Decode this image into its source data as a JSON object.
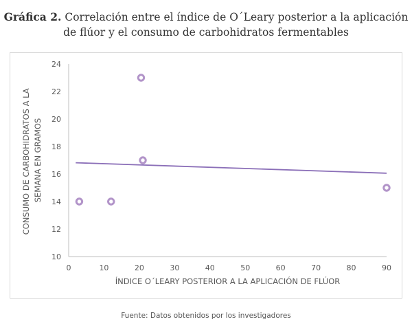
{
  "caption": {
    "label": "Gráfica 2.",
    "line1": "Correlación entre el índice de O´Leary posterior a la aplicación",
    "line2": "de flúor y el consumo de carbohidratos fermentables"
  },
  "source": "Fuente: Datos obtenidos por los investigadores",
  "colors": {
    "marker": "#b294c9",
    "trendline": "#8b6fb8",
    "axis": "#bfbfbf",
    "text": "#595959"
  },
  "chart_data": {
    "type": "scatter",
    "title": "Correlación entre el índice de O´Leary posterior a la aplicación de flúor y el consumo de carbohidratos fermentables",
    "xlabel": "ÍNDICE O´LEARY POSTERIOR A LA APLICACIÓN DE FLÚOR",
    "ylabel_lines": [
      "CONSUMO DE CARBOHIDRATOS A LA",
      "SEMANA EN GRAMOS"
    ],
    "xlim": [
      0,
      90
    ],
    "ylim": [
      10,
      24
    ],
    "x_ticks": [
      "0",
      "10",
      "20",
      "30",
      "40",
      "50",
      "60",
      "70",
      "80",
      "90"
    ],
    "x_tick_values": [
      0,
      10,
      20,
      30,
      40,
      50,
      60,
      70,
      80,
      90
    ],
    "y_ticks": [
      "10",
      "12",
      "14",
      "16",
      "18",
      "20",
      "22",
      "24"
    ],
    "y_tick_values": [
      10,
      12,
      14,
      16,
      18,
      20,
      22,
      24
    ],
    "grid": false,
    "points": [
      {
        "x": 3,
        "y": 14
      },
      {
        "x": 12,
        "y": 14
      },
      {
        "x": 20.5,
        "y": 23
      },
      {
        "x": 21,
        "y": 17
      },
      {
        "x": 90,
        "y": 15
      }
    ],
    "trendline": {
      "type": "linear",
      "x": [
        2,
        90
      ],
      "y": [
        16.82,
        16.06
      ]
    }
  }
}
